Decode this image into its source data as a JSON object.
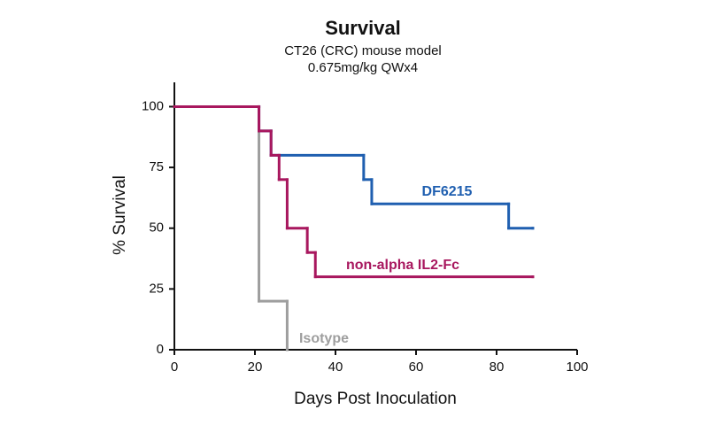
{
  "chart_data": {
    "type": "step",
    "title": "Survival",
    "subtitle": [
      "CT26 (CRC) mouse model",
      "0.675mg/kg QWx4"
    ],
    "x_label": "Days Post Inoculation",
    "y_label": "% Survival",
    "xlim": [
      0,
      100
    ],
    "xticks": [
      0,
      20,
      40,
      60,
      80,
      100
    ],
    "ylim": [
      0,
      110
    ],
    "yticks": [
      0,
      25,
      50,
      75,
      100
    ],
    "grid": false,
    "series": [
      {
        "name": "Isotype",
        "color": "#9e9e9e",
        "x": [
          0,
          21,
          28
        ],
        "values": [
          100,
          20,
          0
        ]
      },
      {
        "name": "DF6215",
        "color": "#1f5fb0",
        "x": [
          0,
          21,
          24,
          47,
          49,
          83,
          89
        ],
        "values": [
          100,
          90,
          80,
          70,
          60,
          50,
          50
        ]
      },
      {
        "name": "non-alpha IL2-Fc",
        "color": "#a8175e",
        "x": [
          0,
          21,
          24,
          26,
          28,
          33,
          35,
          89
        ],
        "values": [
          100,
          90,
          80,
          70,
          50,
          40,
          30,
          30
        ]
      }
    ]
  }
}
